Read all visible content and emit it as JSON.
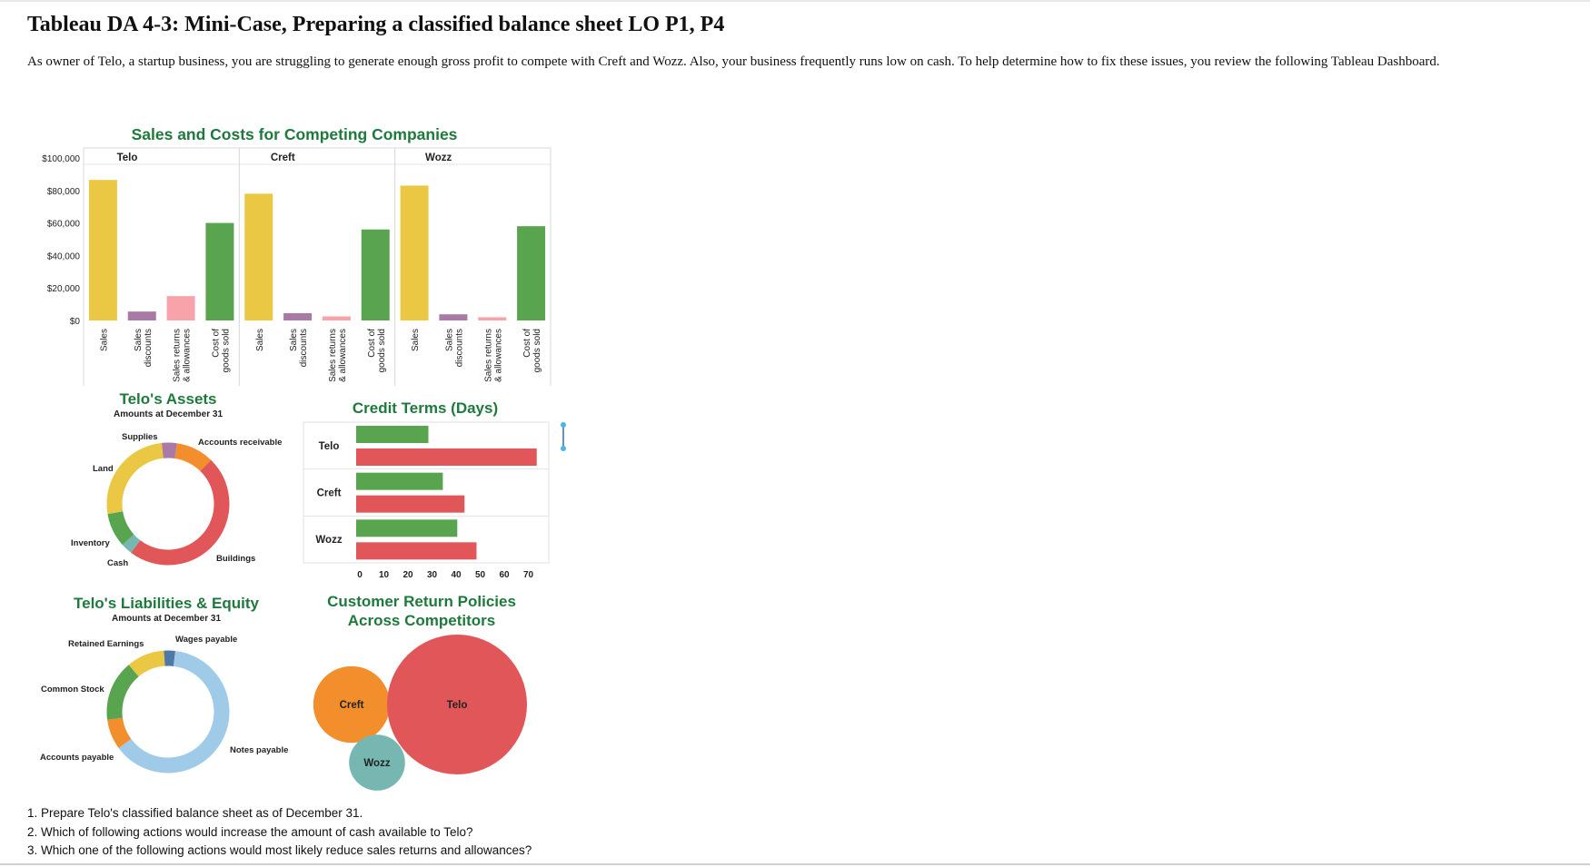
{
  "document": {
    "title": "Tableau DA 4-3: Mini-Case, Preparing a classified balance sheet LO P1, P4",
    "intro": "As owner of Telo, a startup business, you are struggling to generate enough gross profit to compete with Creft and Wozz. Also, your business frequently runs low on cash. To help determine how to fix these issues, you review the following Tableau Dashboard.",
    "questions": [
      "1. Prepare Telo's classified balance sheet as of December 31.",
      "2. Which of following actions would increase the amount of cash available to Telo?",
      "3. Which one of the following actions would most likely reduce sales returns and allowances?"
    ]
  },
  "chart_data": [
    {
      "type": "bar",
      "title": "Sales and Costs for Competing Companies",
      "panels": [
        "Telo",
        "Creft",
        "Wozz"
      ],
      "categories": [
        "Sales",
        "Sales discounts",
        "Sales returns & allowances",
        "Cost of goods sold"
      ],
      "category_lines": [
        [
          "Sales"
        ],
        [
          "Sales",
          "discounts"
        ],
        [
          "Sales returns",
          "& allowances"
        ],
        [
          "Cost of",
          "goods sold"
        ]
      ],
      "category_colors": [
        "#ebc844",
        "#a97aa6",
        "#f8a2aa",
        "#58a44f"
      ],
      "series": [
        {
          "name": "Telo",
          "values": [
            86500,
            5500,
            15000,
            60000
          ]
        },
        {
          "name": "Creft",
          "values": [
            78000,
            4500,
            2500,
            56000
          ]
        },
        {
          "name": "Wozz",
          "values": [
            83000,
            3800,
            2000,
            58000
          ]
        }
      ],
      "y_ticks": [
        0,
        20000,
        40000,
        60000,
        80000,
        100000
      ],
      "y_tick_labels": [
        "$0",
        "$20,000",
        "$40,000",
        "$60,000",
        "$80,000",
        "$100,000"
      ],
      "ylim": [
        0,
        100000
      ]
    },
    {
      "type": "pie",
      "title": "Telo's Assets",
      "subtitle": "Amounts at December 31",
      "slices": [
        {
          "label": "Supplies",
          "value": 4,
          "color": "#a97aa6"
        },
        {
          "label": "Accounts receivable",
          "value": 10,
          "color": "#f28e2b"
        },
        {
          "label": "Buildings",
          "value": 48,
          "color": "#e15759"
        },
        {
          "label": "Cash",
          "value": 3,
          "color": "#76b7b2"
        },
        {
          "label": "Inventory",
          "value": 9,
          "color": "#58a44f"
        },
        {
          "label": "Land",
          "value": 26,
          "color": "#ebc844"
        }
      ]
    },
    {
      "type": "bar",
      "orientation": "horizontal",
      "title": "Credit Terms (Days)",
      "categories": [
        "Telo",
        "Creft",
        "Wozz"
      ],
      "series": [
        {
          "color": "#58a44f",
          "values": [
            30,
            36,
            42
          ]
        },
        {
          "color": "#e15759",
          "values": [
            75,
            45,
            50
          ]
        }
      ],
      "x_ticks": [
        0,
        10,
        20,
        30,
        40,
        50,
        60,
        70
      ],
      "xlim": [
        0,
        80
      ]
    },
    {
      "type": "pie",
      "title": "Telo's Liabilities & Equity",
      "subtitle": "Amounts at December 31",
      "slices": [
        {
          "label": "Wages payable",
          "value": 3,
          "color": "#4e79a7"
        },
        {
          "label": "Notes payable",
          "value": 63,
          "color": "#a0cbe8"
        },
        {
          "label": "Accounts payable",
          "value": 8,
          "color": "#f28e2b"
        },
        {
          "label": "Common Stock",
          "value": 16,
          "color": "#58a44f"
        },
        {
          "label": "Retained Earnings",
          "value": 10,
          "color": "#ebc844"
        }
      ]
    },
    {
      "type": "bubble",
      "title": "Customer Return Policies Across Competitors",
      "title_lines": [
        "Customer Return Policies",
        "Across Competitors"
      ],
      "bubbles": [
        {
          "label": "Creft",
          "value": 30,
          "color": "#f28e2b"
        },
        {
          "label": "Telo",
          "value": 100,
          "color": "#e15759"
        },
        {
          "label": "Wozz",
          "value": 16,
          "color": "#76b7b2"
        }
      ]
    }
  ]
}
